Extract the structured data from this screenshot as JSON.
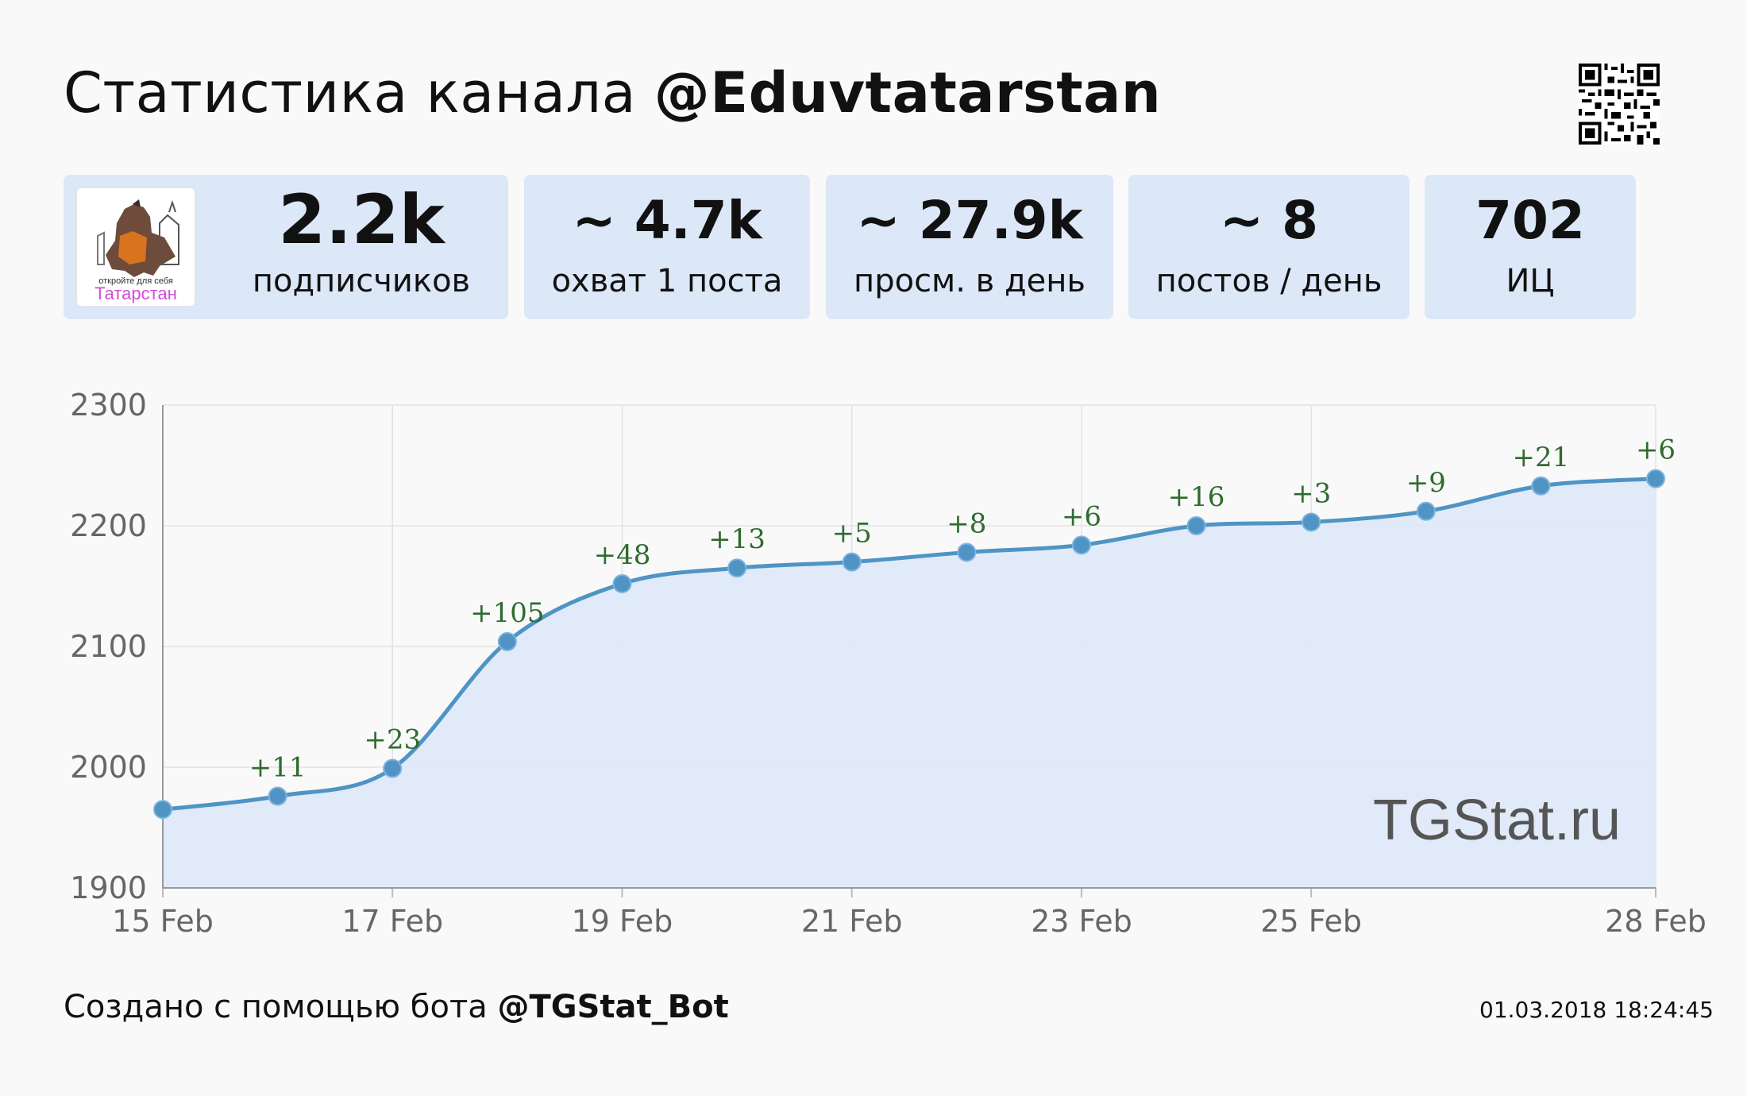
{
  "header": {
    "title_prefix": "Статистика канала",
    "channel": "@Eduvtatarstan"
  },
  "qr_icon": "qr-code-icon",
  "avatar": {
    "line1": "откройте для себя",
    "line2": "Татарстан",
    "accent_color": "#d14bd6"
  },
  "stats": [
    {
      "value": "2.2k",
      "label": "подписчиков"
    },
    {
      "value": "~ 4.7k",
      "label": "охват 1 поста"
    },
    {
      "value": "~ 27.9k",
      "label": "просм. в день"
    },
    {
      "value": "~ 8",
      "label": "постов / день"
    },
    {
      "value": "702",
      "label": "ИЦ"
    }
  ],
  "chart_data": {
    "type": "area",
    "title": "",
    "xlabel": "",
    "ylabel": "",
    "x": [
      "15 Feb",
      "16 Feb",
      "17 Feb",
      "18 Feb",
      "19 Feb",
      "20 Feb",
      "21 Feb",
      "22 Feb",
      "23 Feb",
      "24 Feb",
      "25 Feb",
      "26 Feb",
      "27 Feb",
      "28 Feb"
    ],
    "values": [
      1965,
      1976,
      1999,
      2104,
      2152,
      2165,
      2170,
      2178,
      2184,
      2200,
      2203,
      2212,
      2233,
      2239
    ],
    "point_labels": [
      "",
      "+11",
      "+23",
      "+105",
      "+48",
      "+13",
      "+5",
      "+8",
      "+6",
      "+16",
      "+3",
      "+9",
      "+21",
      "+6"
    ],
    "x_tick_labels": [
      "15 Feb",
      "17 Feb",
      "19 Feb",
      "21 Feb",
      "23 Feb",
      "25 Feb",
      "28 Feb"
    ],
    "x_tick_index": [
      0,
      2,
      4,
      6,
      8,
      10,
      13
    ],
    "y_ticks": [
      1900,
      2000,
      2100,
      2200,
      2300
    ],
    "ylim": [
      1900,
      2300
    ],
    "grid": true,
    "watermark": "TGStat.ru",
    "colors": {
      "line": "#4f94c4",
      "fill": "#dfe9f9",
      "label": "#2f6b2f",
      "grid": "#e2e2e2"
    }
  },
  "footer": {
    "created_prefix": "Создано с помощью бота",
    "bot": "@TGStat_Bot",
    "timestamp": "01.03.2018 18:24:45"
  }
}
